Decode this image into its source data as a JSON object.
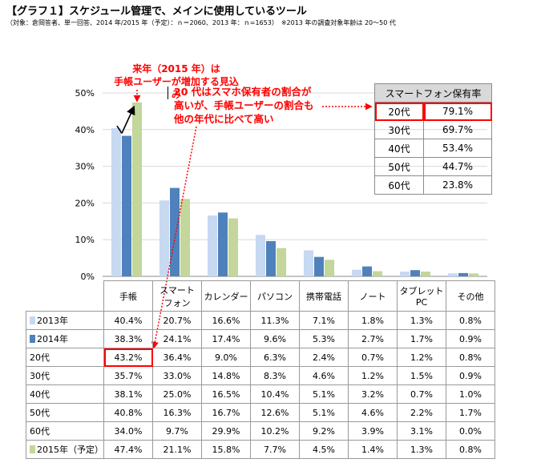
{
  "header": {
    "title": "【グラフ１】スケジュール管理で、メインに使用しているツール",
    "subtitle": "（対象：倉岡答者、単一回答、2014 年/2015 年（予定）：ｎ＝2060、2013 年：ｎ=1653）　※2013 年の調査対象年齢は 20～50 代"
  },
  "callouts": {
    "next_year_line1": "来年（2015 年）は",
    "next_year_line2": "手帳ユーザーが増加する見込み",
    "twenties_line1": "20 代はスマホ保有者の割合が",
    "twenties_line2": "高いが、手帳ユーザーの割合も",
    "twenties_line3": "他の年代に比べて高い"
  },
  "smartphone_table": {
    "header": "スマートフォン保有率",
    "rows": [
      {
        "age": "20代",
        "rate": "79.1%"
      },
      {
        "age": "30代",
        "rate": "69.7%"
      },
      {
        "age": "40代",
        "rate": "53.4%"
      },
      {
        "age": "50代",
        "rate": "44.7%"
      },
      {
        "age": "60代",
        "rate": "23.8%"
      }
    ]
  },
  "colors": {
    "s2013": "#c6d9f1",
    "s2014": "#4f81bd",
    "s2015": "#c3d69b",
    "highlight": "#ff0000"
  },
  "chart_data": {
    "type": "bar",
    "categories": [
      "手帳",
      "スマートフォン",
      "カレンダー",
      "パソコン",
      "携帯電話",
      "ノート",
      "タブレットPC",
      "その他"
    ],
    "category_labels": [
      [
        "手帳"
      ],
      [
        "スマート",
        "フォン"
      ],
      [
        "カレンダー"
      ],
      [
        "パソコン"
      ],
      [
        "携帯電話"
      ],
      [
        "ノート"
      ],
      [
        "タブレット",
        "PC"
      ],
      [
        "その他"
      ]
    ],
    "series": [
      {
        "name": "2013年",
        "values": [
          40.4,
          20.7,
          16.6,
          11.3,
          7.1,
          1.8,
          1.3,
          0.8
        ]
      },
      {
        "name": "2014年",
        "values": [
          38.3,
          24.1,
          17.4,
          9.6,
          5.3,
          2.7,
          1.7,
          0.9
        ]
      },
      {
        "name": "2015年（予定）",
        "values": [
          47.4,
          21.1,
          15.8,
          7.7,
          4.5,
          1.4,
          1.3,
          0.8
        ]
      }
    ],
    "ylim": [
      0,
      50
    ],
    "yticks": [
      "0%",
      "10%",
      "20%",
      "30%",
      "40%",
      "50%"
    ],
    "table_rows": [
      {
        "label": "2013年",
        "values": [
          "40.4%",
          "20.7%",
          "16.6%",
          "11.3%",
          "7.1%",
          "1.8%",
          "1.3%",
          "0.8%"
        ]
      },
      {
        "label": "2014年",
        "values": [
          "38.3%",
          "24.1%",
          "17.4%",
          "9.6%",
          "5.3%",
          "2.7%",
          "1.7%",
          "0.9%"
        ]
      },
      {
        "label": "20代",
        "values": [
          "43.2%",
          "36.4%",
          "9.0%",
          "6.3%",
          "2.4%",
          "0.7%",
          "1.2%",
          "0.8%"
        ]
      },
      {
        "label": "30代",
        "values": [
          "35.7%",
          "33.0%",
          "14.8%",
          "8.3%",
          "4.6%",
          "1.2%",
          "1.5%",
          "0.9%"
        ]
      },
      {
        "label": "40代",
        "values": [
          "38.1%",
          "25.0%",
          "16.5%",
          "10.4%",
          "5.1%",
          "3.2%",
          "0.7%",
          "1.0%"
        ]
      },
      {
        "label": "50代",
        "values": [
          "40.8%",
          "16.3%",
          "16.7%",
          "12.6%",
          "5.1%",
          "4.6%",
          "2.2%",
          "1.7%"
        ]
      },
      {
        "label": "60代",
        "values": [
          "34.0%",
          "9.7%",
          "29.9%",
          "10.2%",
          "9.2%",
          "3.9%",
          "3.1%",
          "0.0%"
        ]
      },
      {
        "label": "2015年（予定）",
        "values": [
          "47.4%",
          "21.1%",
          "15.8%",
          "7.7%",
          "4.5%",
          "1.4%",
          "1.3%",
          "0.8%"
        ]
      }
    ]
  }
}
